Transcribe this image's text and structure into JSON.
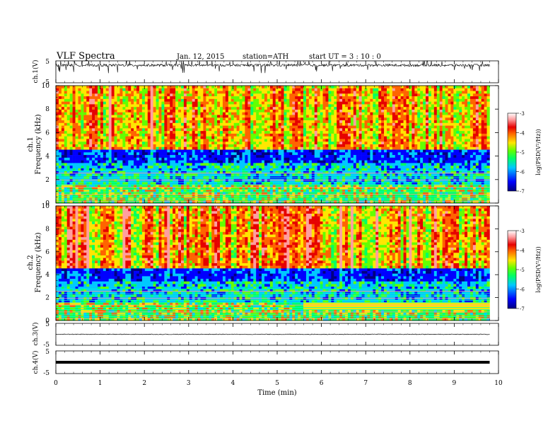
{
  "header": {
    "title": "VLF  Spectra",
    "date": "Jan. 12, 2015",
    "station": "station=ATH",
    "start": "start  UT  =   3  : 10 : 0"
  },
  "colors": {
    "colormap": [
      "#000080",
      "#0000ff",
      "#00c8ff",
      "#00ff64",
      "#64ff00",
      "#ffe600",
      "#ff6400",
      "#e60000",
      "#ff9ea0",
      "#ffffff"
    ]
  },
  "chart_data": [
    {
      "id": "ch1-waveform",
      "type": "line",
      "ylabel": "ch.1(V)",
      "ylim": [
        -5,
        5
      ],
      "yticks": [
        "5",
        "-5"
      ],
      "description_series": "dense VLF waveform, baseline near +3 V with impulsive spikes",
      "baseline": 3
    },
    {
      "id": "ch1-spectrogram",
      "type": "heatmap",
      "ylabel": "ch.1",
      "ylabel2": "Frequency  (kHz)",
      "ylim": [
        0,
        10
      ],
      "yticks": [
        "0",
        "2",
        "4",
        "6",
        "8",
        "10"
      ],
      "colorbar": {
        "label": "log(PSD(V²/Hz))",
        "range": [
          -7,
          -3
        ],
        "ticks": [
          "-3",
          "-4",
          "-5",
          "-6",
          "-7"
        ]
      }
    },
    {
      "id": "ch2-spectrogram",
      "type": "heatmap",
      "ylabel": "ch.2",
      "ylabel2": "Frequency  (kHz)",
      "ylim": [
        0,
        10
      ],
      "yticks": [
        "0",
        "2",
        "4",
        "6",
        "8",
        "10"
      ],
      "colorbar": {
        "label": "log(PSD(V²/Hz))",
        "range": [
          -7,
          -3
        ],
        "ticks": [
          "-3",
          "-4",
          "-5",
          "-6",
          "-7"
        ]
      }
    },
    {
      "id": "ch3-waveform",
      "type": "line",
      "ylabel": "ch.3(V)",
      "ylim": [
        -5,
        5
      ],
      "yticks": [
        "5",
        "-5"
      ],
      "baseline": 0
    },
    {
      "id": "ch4-waveform",
      "type": "line",
      "ylabel": "ch.4(V)",
      "ylim": [
        -5,
        5
      ],
      "yticks": [
        "5",
        "-5"
      ],
      "baseline": 0
    }
  ],
  "x_axis": {
    "label": "Time  (min)",
    "range": [
      0,
      10
    ],
    "data_end": 9.8,
    "ticks": [
      "0",
      "1",
      "2",
      "3",
      "4",
      "5",
      "6",
      "7",
      "8",
      "9",
      "10"
    ]
  }
}
